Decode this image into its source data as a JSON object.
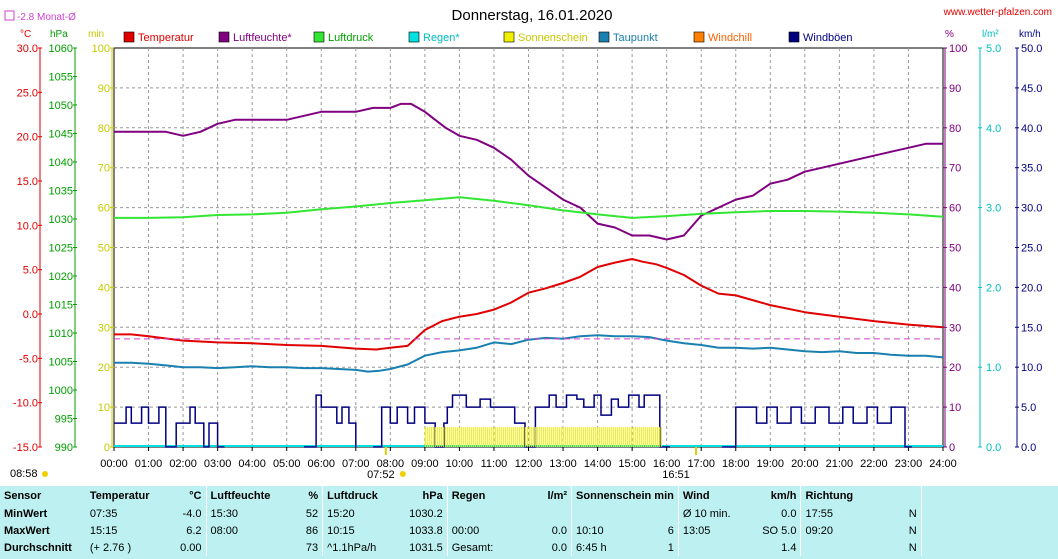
{
  "colors": {
    "temperature": "#e00000",
    "humidity": "#800080",
    "pressure": "#33e633",
    "rain": "#00e0e0",
    "sunshine": "#f0f000",
    "dewpoint": "#1a80b0",
    "windchill": "#ff8000",
    "gusts": "#000080",
    "monthavg": "#d040d0"
  },
  "chart_data": {
    "type": "line",
    "title": "Donnerstag, 16.01.2020",
    "source": "www.wetter-pfalzen.com",
    "month_avg_label": "-2.8 Monat-Ø",
    "month_avg_value": -2.8,
    "units_left": [
      "°C",
      "hPa",
      "min"
    ],
    "units_right": [
      "%",
      "l/m²",
      "km/h"
    ],
    "axes": {
      "temperature": {
        "unit": "°C",
        "range": [
          -15,
          30
        ],
        "ticks": [
          "30.0",
          "25.0",
          "20.0",
          "15.0",
          "10.0",
          "5.0",
          "0.0",
          "-5.0",
          "-10.0",
          "-15.0"
        ]
      },
      "pressure": {
        "unit": "hPa",
        "range": [
          990,
          1060
        ],
        "ticks": [
          "1060",
          "1055",
          "1050",
          "1045",
          "1040",
          "1035",
          "1030",
          "1025",
          "1020",
          "1015",
          "1010",
          "1005",
          "1000",
          "995",
          "990"
        ]
      },
      "sunshine_min": {
        "unit": "min",
        "range": [
          0,
          100
        ],
        "ticks": [
          "100",
          "90",
          "80",
          "70",
          "60",
          "50",
          "40",
          "30",
          "20",
          "10",
          "0"
        ]
      },
      "humidity": {
        "unit": "%",
        "range": [
          0,
          100
        ],
        "ticks": [
          "100",
          "90",
          "80",
          "70",
          "60",
          "50",
          "40",
          "30",
          "20",
          "10",
          "0"
        ]
      },
      "rain": {
        "unit": "l/m²",
        "range": [
          0,
          5
        ],
        "ticks": [
          "5.0",
          "4.0",
          "3.0",
          "2.0",
          "1.0",
          "0.0"
        ]
      },
      "wind": {
        "unit": "km/h",
        "range": [
          0,
          50
        ],
        "ticks": [
          "50.0",
          "45.0",
          "40.0",
          "35.0",
          "30.0",
          "25.0",
          "20.0",
          "15.0",
          "10.0",
          "5.0",
          "0.0"
        ]
      }
    },
    "x_ticks": [
      "00:00",
      "01:00",
      "02:00",
      "03:00",
      "04:00",
      "05:00",
      "06:00",
      "07:00",
      "08:00",
      "09:00",
      "10:00",
      "11:00",
      "12:00",
      "13:00",
      "14:00",
      "15:00",
      "16:00",
      "17:00",
      "18:00",
      "19:00",
      "20:00",
      "21:00",
      "22:00",
      "23:00",
      "24:00"
    ],
    "x_range": [
      0,
      24
    ],
    "sunrise_label": "07:52",
    "sunrise_hour": 7.87,
    "sunset_label": "16:51",
    "sunset_hour": 16.85,
    "corner_time": "08:58",
    "legend": [
      "Temperatur",
      "Luftfeuchte*",
      "Luftdruck",
      "Regen*",
      "Sonnenschein",
      "Taupunkt",
      "Windchill",
      "Windböen"
    ],
    "series": [
      {
        "name": "Temperatur",
        "axis": "temperature",
        "x": [
          0,
          0.5,
          1,
          2,
          3,
          4,
          5,
          6,
          7,
          7.6,
          8,
          8.5,
          9,
          9.5,
          10,
          10.5,
          11,
          11.5,
          12,
          12.5,
          13,
          13.5,
          14,
          14.5,
          15,
          15.3,
          15.7,
          16,
          16.5,
          17,
          17.5,
          18,
          19,
          20,
          21,
          22,
          23,
          24
        ],
        "y": [
          -2.3,
          -2.3,
          -2.5,
          -3,
          -3.2,
          -3.3,
          -3.5,
          -3.6,
          -3.9,
          -4.0,
          -3.8,
          -3.6,
          -1.8,
          -0.8,
          -0.3,
          0,
          0.5,
          1.3,
          2.4,
          2.9,
          3.5,
          4.2,
          5.3,
          5.8,
          6.2,
          5.9,
          5.6,
          5.2,
          4.4,
          3.2,
          2.3,
          2.1,
          1,
          0.2,
          -0.3,
          -0.8,
          -1.2,
          -1.5
        ]
      },
      {
        "name": "Luftfeuchte*",
        "axis": "humidity",
        "x": [
          0,
          0.5,
          1,
          1.5,
          2,
          2.5,
          3,
          3.5,
          4,
          4.5,
          5,
          5.5,
          6,
          6.5,
          7,
          7.5,
          8,
          8.3,
          8.6,
          9,
          9.3,
          9.6,
          10,
          10.5,
          11,
          11.5,
          12,
          12.5,
          13,
          13.5,
          14,
          14.5,
          15,
          15.5,
          16,
          16.5,
          17,
          17.5,
          18,
          18.5,
          19,
          19.5,
          20,
          20.5,
          21,
          21.5,
          22,
          22.5,
          23,
          23.5,
          24
        ],
        "y": [
          79,
          79,
          79,
          79,
          78,
          79,
          81,
          82,
          82,
          82,
          82,
          83,
          84,
          84,
          84,
          85,
          85,
          86,
          86,
          84,
          82,
          80,
          78,
          77,
          75,
          72,
          68,
          65,
          62,
          60,
          56,
          55,
          53,
          53,
          52,
          53,
          58,
          60,
          62,
          63,
          66,
          67,
          69,
          70,
          71,
          72,
          73,
          74,
          75,
          76,
          76
        ]
      },
      {
        "name": "Luftdruck",
        "axis": "pressure",
        "x": [
          0,
          1,
          2,
          3,
          4,
          5,
          6,
          7,
          8,
          9,
          10,
          11,
          12,
          13,
          14,
          15,
          16,
          17,
          18,
          19,
          20,
          21,
          22,
          23,
          24
        ],
        "y": [
          1030.2,
          1030.2,
          1030.3,
          1030.7,
          1030.8,
          1031.1,
          1031.7,
          1032.2,
          1032.8,
          1033.3,
          1033.8,
          1033.2,
          1032.4,
          1031.5,
          1030.8,
          1030.2,
          1030.5,
          1030.9,
          1031.2,
          1031.4,
          1031.4,
          1031.3,
          1031.1,
          1030.8,
          1030.4
        ]
      },
      {
        "name": "Taupunkt",
        "axis": "temperature",
        "x": [
          0,
          0.5,
          1,
          1.5,
          2,
          2.5,
          3,
          3.5,
          4,
          4.5,
          5,
          5.5,
          6,
          6.5,
          7,
          7.35,
          7.7,
          8,
          8.5,
          9,
          9.5,
          10,
          10.5,
          11,
          11.5,
          12,
          12.5,
          13,
          13.5,
          14,
          14.5,
          15,
          15.5,
          16,
          16.5,
          17,
          17.5,
          18,
          18.5,
          19,
          19.5,
          20,
          20.5,
          21,
          21.5,
          22,
          22.5,
          23,
          23.5,
          24
        ],
        "y": [
          -5.5,
          -5.5,
          -5.6,
          -5.8,
          -6,
          -6,
          -6.1,
          -6,
          -5.9,
          -6,
          -6,
          -6.1,
          -6.1,
          -6.2,
          -6.3,
          -6.5,
          -6.4,
          -6.2,
          -5.7,
          -4.7,
          -4.3,
          -4.1,
          -3.8,
          -3.2,
          -3.4,
          -2.9,
          -2.7,
          -2.8,
          -2.5,
          -2.4,
          -2.5,
          -2.5,
          -2.6,
          -3,
          -3.3,
          -3.5,
          -3.8,
          -3.8,
          -3.9,
          -3.8,
          -4,
          -4.2,
          -4.3,
          -4.2,
          -4.4,
          -4.4,
          -4.6,
          -4.7,
          -4.7,
          -4.9
        ]
      },
      {
        "name": "Windböen",
        "axis": "wind",
        "type": "step",
        "segments": [
          {
            "x": [
              0,
              0.35,
              0.5,
              0.8,
              1,
              1.3,
              1.5,
              1.8,
              2.2,
              2.35,
              2.6,
              2.75,
              3,
              3.2
            ],
            "y": [
              3,
              5,
              3,
              5,
              3,
              5,
              0,
              3,
              5,
              3,
              0,
              3,
              0,
              0
            ]
          },
          {
            "x": [
              5.5,
              5.85,
              6.0,
              6.2,
              6.45,
              6.6,
              6.8,
              7.0
            ],
            "y": [
              0,
              6.5,
              5,
              5,
              3,
              5,
              3,
              0
            ]
          },
          {
            "x": [
              7.5,
              7.75,
              8.0,
              8.2,
              8.5,
              8.7,
              9.0,
              9.3,
              9.55,
              9.65,
              9.8,
              10.2,
              10.6,
              10.9,
              11.2,
              11.6,
              11.9,
              12.2,
              12.4,
              12.6,
              12.8,
              13.1,
              13.4,
              13.6,
              13.9,
              14.1,
              14.4,
              14.6,
              14.9,
              15.2,
              15.35,
              15.5,
              15.8,
              16.1
            ],
            "y": [
              0,
              5,
              3,
              5,
              3,
              5,
              3,
              0,
              3,
              5,
              6.5,
              5,
              6,
              5,
              5,
              3,
              0,
              5,
              5,
              6.5,
              5,
              6.5,
              6,
              5,
              6.5,
              4,
              6,
              5,
              6.5,
              5,
              6.5,
              6.5,
              0,
              0
            ]
          },
          {
            "x": [
              17.6,
              18.0,
              18.4,
              18.6,
              18.9,
              19.2,
              19.6,
              19.9,
              20.3,
              20.7,
              21.1,
              21.4,
              21.8,
              22.1,
              22.5,
              22.9,
              23.1
            ],
            "y": [
              0,
              5,
              5,
              3,
              5,
              3,
              5,
              3,
              5,
              3,
              5,
              3,
              5,
              3,
              5,
              0,
              0
            ]
          }
        ]
      },
      {
        "name": "Sonnenschein",
        "axis": "sunshine_min",
        "type": "bar",
        "x_start": 9.0,
        "x_end": 15.85,
        "value": 5
      }
    ]
  },
  "stats": {
    "headers": {
      "sensor": "Sensor",
      "temperature": "Temperatur",
      "temp_unit": "°C",
      "humidity": "Luftfeuchte",
      "hum_unit": "%",
      "pressure": "Luftdruck",
      "press_unit": "hPa",
      "rain": "Regen",
      "rain_unit": "l/m²",
      "sun": "Sonnenschein min",
      "wind": "Wind",
      "wind_unit": "km/h",
      "direction": "Richtung"
    },
    "rows": [
      {
        "label": "MinWert",
        "temp_time": "07:35",
        "temp": "-4.0",
        "hum_time": "15:30",
        "hum": "52",
        "press_time": "15:20",
        "press": "1030.2",
        "rain_time": "",
        "rain": "",
        "sun_time": "",
        "sun": "",
        "wind_time": "Ø 10 min.",
        "wind": "0.0",
        "dir_time": "17:55",
        "dir": "N"
      },
      {
        "label": "MaxWert",
        "temp_time": "15:15",
        "temp": "6.2",
        "hum_time": "08:00",
        "hum": "86",
        "press_time": "10:15",
        "press": "1033.8",
        "rain_time": "00:00",
        "rain": "0.0",
        "sun_time": "10:10",
        "sun": "6",
        "wind_time": "13:05",
        "wind": "SO 5.0",
        "dir_time": "09:20",
        "dir": "N"
      },
      {
        "label": "Durchschnitt",
        "temp_time": "(+ 2.76 )",
        "temp": "0.00",
        "hum_time": "",
        "hum": "73",
        "press_time": "^1.1hPa/h",
        "press": "1031.5",
        "rain_time": "Gesamt:",
        "rain": "0.0",
        "sun_time": "6:45 h",
        "sun": "1",
        "wind_time": "",
        "wind": "1.4",
        "dir_time": "",
        "dir": "N"
      }
    ]
  }
}
